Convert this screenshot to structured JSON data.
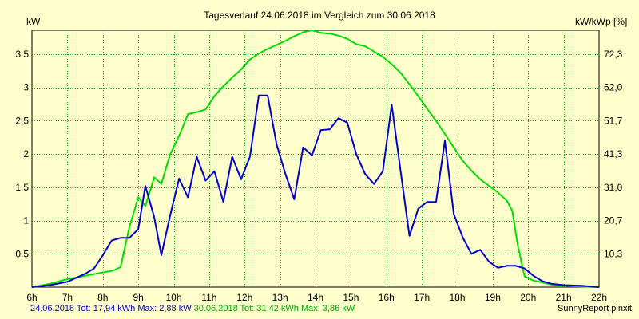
{
  "chart_data": {
    "type": "line",
    "title": "Tagesverlauf 24.06.2018 im Vergleich zum 30.06.2018",
    "ylabel": "kW",
    "y2label": "kW/kWp [%]",
    "xlabel": "",
    "xlim": [
      6,
      22
    ],
    "ylim": [
      0,
      3.86
    ],
    "x_ticks": [
      "6h",
      "7h",
      "8h",
      "9h",
      "10h",
      "11h",
      "12h",
      "13h",
      "14h",
      "15h",
      "16h",
      "17h",
      "18h",
      "19h",
      "20h",
      "21h",
      "22h"
    ],
    "y_ticks": [
      "0.5",
      "1",
      "1.5",
      "2",
      "2.5",
      "3",
      "3.5"
    ],
    "y_tick_values": [
      0.5,
      1,
      1.5,
      2,
      2.5,
      3,
      3.5
    ],
    "y2_ticks": [
      "10,3",
      "20,7",
      "31,0",
      "41,3",
      "51,7",
      "62,0",
      "72,3"
    ],
    "grid": true,
    "series": [
      {
        "name": "24.06.2018",
        "color": "#0000CC",
        "points": [
          [
            6.0,
            0
          ],
          [
            6.5,
            0.03
          ],
          [
            7.0,
            0.08
          ],
          [
            7.5,
            0.2
          ],
          [
            7.75,
            0.28
          ],
          [
            8.0,
            0.48
          ],
          [
            8.25,
            0.7
          ],
          [
            8.5,
            0.74
          ],
          [
            8.75,
            0.74
          ],
          [
            9.0,
            0.87
          ],
          [
            9.2,
            1.52
          ],
          [
            9.45,
            1.05
          ],
          [
            9.65,
            0.48
          ],
          [
            9.9,
            1.08
          ],
          [
            10.15,
            1.63
          ],
          [
            10.4,
            1.35
          ],
          [
            10.65,
            1.96
          ],
          [
            10.9,
            1.6
          ],
          [
            11.15,
            1.74
          ],
          [
            11.4,
            1.28
          ],
          [
            11.65,
            1.96
          ],
          [
            11.9,
            1.62
          ],
          [
            12.15,
            1.96
          ],
          [
            12.4,
            2.88
          ],
          [
            12.65,
            2.88
          ],
          [
            12.9,
            2.15
          ],
          [
            13.15,
            1.7
          ],
          [
            13.4,
            1.32
          ],
          [
            13.65,
            2.1
          ],
          [
            13.9,
            1.98
          ],
          [
            14.15,
            2.36
          ],
          [
            14.4,
            2.37
          ],
          [
            14.65,
            2.54
          ],
          [
            14.9,
            2.47
          ],
          [
            15.15,
            2.0
          ],
          [
            15.4,
            1.7
          ],
          [
            15.65,
            1.55
          ],
          [
            15.9,
            1.74
          ],
          [
            16.15,
            2.74
          ],
          [
            16.4,
            1.75
          ],
          [
            16.65,
            0.77
          ],
          [
            16.9,
            1.18
          ],
          [
            17.15,
            1.28
          ],
          [
            17.4,
            1.28
          ],
          [
            17.65,
            2.2
          ],
          [
            17.9,
            1.1
          ],
          [
            18.15,
            0.75
          ],
          [
            18.4,
            0.5
          ],
          [
            18.65,
            0.56
          ],
          [
            18.9,
            0.38
          ],
          [
            19.15,
            0.29
          ],
          [
            19.4,
            0.32
          ],
          [
            19.65,
            0.32
          ],
          [
            19.9,
            0.28
          ],
          [
            20.15,
            0.17
          ],
          [
            20.4,
            0.09
          ],
          [
            20.65,
            0.05
          ],
          [
            21.0,
            0.03
          ],
          [
            21.5,
            0.02
          ],
          [
            22.0,
            0.0
          ]
        ]
      },
      {
        "name": "30.06.2018",
        "color": "#00DD00",
        "points": [
          [
            6.0,
            0
          ],
          [
            6.5,
            0.05
          ],
          [
            7.0,
            0.12
          ],
          [
            7.5,
            0.17
          ],
          [
            8.0,
            0.22
          ],
          [
            8.3,
            0.25
          ],
          [
            8.5,
            0.3
          ],
          [
            8.75,
            0.9
          ],
          [
            9.0,
            1.35
          ],
          [
            9.2,
            1.22
          ],
          [
            9.45,
            1.65
          ],
          [
            9.65,
            1.55
          ],
          [
            9.9,
            2.0
          ],
          [
            10.15,
            2.27
          ],
          [
            10.4,
            2.6
          ],
          [
            10.65,
            2.63
          ],
          [
            10.9,
            2.67
          ],
          [
            11.15,
            2.87
          ],
          [
            11.4,
            3.02
          ],
          [
            11.65,
            3.15
          ],
          [
            11.9,
            3.27
          ],
          [
            12.15,
            3.42
          ],
          [
            12.4,
            3.51
          ],
          [
            12.65,
            3.58
          ],
          [
            12.9,
            3.64
          ],
          [
            13.15,
            3.7
          ],
          [
            13.4,
            3.77
          ],
          [
            13.65,
            3.83
          ],
          [
            13.9,
            3.86
          ],
          [
            14.15,
            3.82
          ],
          [
            14.4,
            3.81
          ],
          [
            14.65,
            3.78
          ],
          [
            14.9,
            3.73
          ],
          [
            15.15,
            3.65
          ],
          [
            15.4,
            3.62
          ],
          [
            15.65,
            3.54
          ],
          [
            15.9,
            3.46
          ],
          [
            16.15,
            3.35
          ],
          [
            16.4,
            3.22
          ],
          [
            16.65,
            3.05
          ],
          [
            16.9,
            2.87
          ],
          [
            17.15,
            2.68
          ],
          [
            17.4,
            2.5
          ],
          [
            17.65,
            2.3
          ],
          [
            17.9,
            2.1
          ],
          [
            18.15,
            1.9
          ],
          [
            18.4,
            1.75
          ],
          [
            18.65,
            1.62
          ],
          [
            18.9,
            1.52
          ],
          [
            19.15,
            1.42
          ],
          [
            19.4,
            1.3
          ],
          [
            19.55,
            1.15
          ],
          [
            19.7,
            0.65
          ],
          [
            19.9,
            0.16
          ],
          [
            20.15,
            0.1
          ],
          [
            20.4,
            0.07
          ],
          [
            20.65,
            0.04
          ],
          [
            21.0,
            0.02
          ],
          [
            21.5,
            0.01
          ],
          [
            22.0,
            0.0
          ]
        ]
      }
    ]
  },
  "footer": {
    "left_blue": "24.06.2018 Tot: 17,94 kWh Max: 2,88 kW",
    "left_green": "30.06.2018 Tot: 31,42 kWh Max: 3,86 kW",
    "right": "SunnyReport pinxit"
  }
}
